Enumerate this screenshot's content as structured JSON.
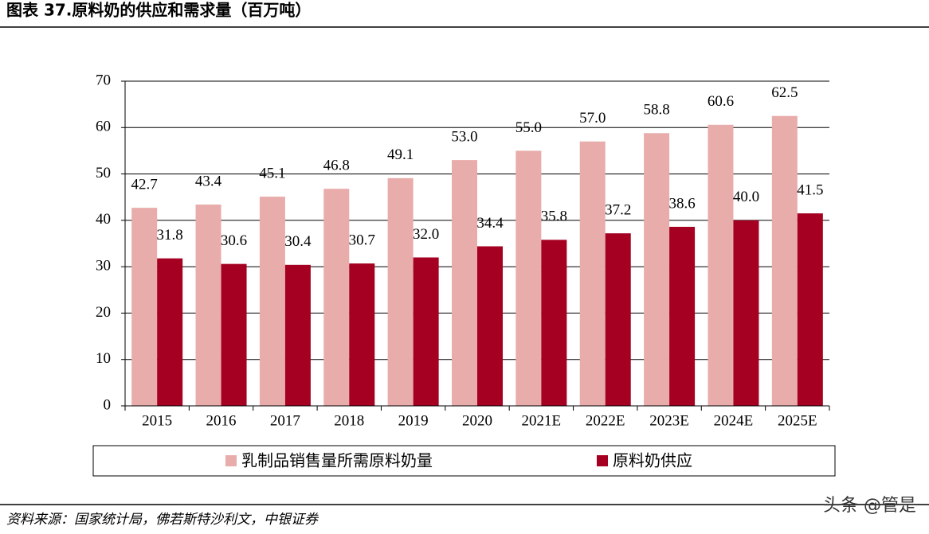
{
  "chart_data": {
    "type": "bar",
    "title": "图表 37.原料奶的供应和需求量（百万吨）",
    "categories": [
      "2015",
      "2016",
      "2017",
      "2018",
      "2019",
      "2020",
      "2021E",
      "2022E",
      "2023E",
      "2024E",
      "2025E"
    ],
    "series": [
      {
        "name": "乳制品销售量所需原料奶量",
        "color": "#e8acab",
        "values": [
          42.7,
          43.4,
          45.1,
          46.8,
          49.1,
          53.0,
          55.0,
          57.0,
          58.8,
          60.6,
          62.5
        ],
        "value_labels": [
          "42.7",
          "43.4",
          "45.1",
          "46.8",
          "49.1",
          "53.0",
          "55.0",
          "57.0",
          "58.8",
          "60.6",
          "62.5"
        ]
      },
      {
        "name": "原料奶供应",
        "color": "#a50021",
        "values": [
          31.8,
          30.6,
          30.4,
          30.7,
          32.0,
          34.4,
          35.8,
          37.2,
          38.6,
          40.0,
          41.5
        ],
        "value_labels": [
          "31.8",
          "30.6",
          "30.4",
          "30.7",
          "32.0",
          "34.4",
          "35.8",
          "37.2",
          "38.6",
          "40.0",
          "41.5"
        ]
      }
    ],
    "ylim": [
      0,
      70
    ],
    "yticks": [
      0,
      10,
      20,
      30,
      40,
      50,
      60,
      70
    ],
    "grid": true,
    "source": "资料来源：国家统计局，佛若斯特沙利文，中银证券",
    "watermark": "头条 @管是"
  }
}
